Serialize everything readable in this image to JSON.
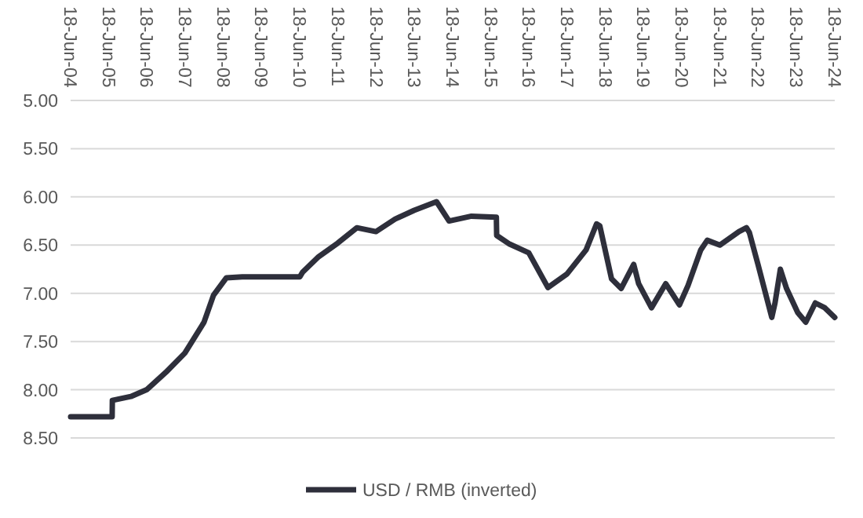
{
  "chart_data": {
    "type": "line",
    "x": [
      "2004-06-18",
      "2005-07-20",
      "2005-07-22",
      "2006-01-15",
      "2006-06-15",
      "2006-12-15",
      "2007-06-15",
      "2007-12-15",
      "2008-03-15",
      "2008-07-15",
      "2008-12-15",
      "2009-06-15",
      "2010-06-18",
      "2010-07-15",
      "2010-12-15",
      "2011-06-15",
      "2011-12-15",
      "2012-06-15",
      "2012-12-15",
      "2013-06-15",
      "2014-01-15",
      "2014-05-15",
      "2014-12-15",
      "2015-08-10",
      "2015-08-13",
      "2015-12-15",
      "2016-06-15",
      "2016-12-15",
      "2017-06-15",
      "2017-12-15",
      "2018-03-25",
      "2018-04-25",
      "2018-08-15",
      "2018-11-15",
      "2019-03-15",
      "2019-05-01",
      "2019-09-01",
      "2020-01-15",
      "2020-05-25",
      "2020-08-15",
      "2020-12-15",
      "2021-02-15",
      "2021-06-15",
      "2021-12-15",
      "2022-02-25",
      "2022-03-25",
      "2022-06-15",
      "2022-10-25",
      "2022-11-25",
      "2023-01-15",
      "2023-03-15",
      "2023-06-30",
      "2023-09-15",
      "2023-12-15",
      "2024-03-15",
      "2024-06-18"
    ],
    "series": [
      {
        "name": "USD / RMB (inverted)",
        "color": "#2e2f3b",
        "values": [
          8.28,
          8.28,
          8.11,
          8.07,
          8.0,
          7.82,
          7.62,
          7.3,
          7.02,
          6.84,
          6.83,
          6.83,
          6.83,
          6.78,
          6.62,
          6.48,
          6.32,
          6.36,
          6.23,
          6.14,
          6.05,
          6.25,
          6.2,
          6.21,
          6.4,
          6.49,
          6.58,
          6.94,
          6.8,
          6.55,
          6.28,
          6.3,
          6.85,
          6.95,
          6.7,
          6.9,
          7.15,
          6.9,
          7.12,
          6.92,
          6.55,
          6.45,
          6.5,
          6.36,
          6.32,
          6.37,
          6.7,
          7.25,
          7.1,
          6.75,
          6.95,
          7.2,
          7.3,
          7.1,
          7.15,
          7.25
        ]
      }
    ],
    "xlim": [
      "2004-06-18",
      "2024-06-18"
    ],
    "xticks": [
      {
        "value": "2004-06-18",
        "label": "18-Jun-04"
      },
      {
        "value": "2005-06-18",
        "label": "18-Jun-05"
      },
      {
        "value": "2006-06-18",
        "label": "18-Jun-06"
      },
      {
        "value": "2007-06-18",
        "label": "18-Jun-07"
      },
      {
        "value": "2008-06-18",
        "label": "18-Jun-08"
      },
      {
        "value": "2009-06-18",
        "label": "18-Jun-09"
      },
      {
        "value": "2010-06-18",
        "label": "18-Jun-10"
      },
      {
        "value": "2011-06-18",
        "label": "18-Jun-11"
      },
      {
        "value": "2012-06-18",
        "label": "18-Jun-12"
      },
      {
        "value": "2013-06-18",
        "label": "18-Jun-13"
      },
      {
        "value": "2014-06-18",
        "label": "18-Jun-14"
      },
      {
        "value": "2015-06-18",
        "label": "18-Jun-15"
      },
      {
        "value": "2016-06-18",
        "label": "18-Jun-16"
      },
      {
        "value": "2017-06-18",
        "label": "18-Jun-17"
      },
      {
        "value": "2018-06-18",
        "label": "18-Jun-18"
      },
      {
        "value": "2019-06-18",
        "label": "18-Jun-19"
      },
      {
        "value": "2020-06-18",
        "label": "18-Jun-20"
      },
      {
        "value": "2021-06-18",
        "label": "18-Jun-21"
      },
      {
        "value": "2022-06-18",
        "label": "18-Jun-22"
      },
      {
        "value": "2023-06-18",
        "label": "18-Jun-23"
      },
      {
        "value": "2024-06-18",
        "label": "18-Jun-24"
      }
    ],
    "ylim": [
      8.5,
      5.0
    ],
    "yticks": [
      {
        "value": 5.0,
        "label": "5.00"
      },
      {
        "value": 5.5,
        "label": "5.50"
      },
      {
        "value": 6.0,
        "label": "6.00"
      },
      {
        "value": 6.5,
        "label": "6.50"
      },
      {
        "value": 7.0,
        "label": "7.00"
      },
      {
        "value": 7.5,
        "label": "7.50"
      },
      {
        "value": 8.0,
        "label": "8.00"
      },
      {
        "value": 8.5,
        "label": "8.50"
      }
    ],
    "grid": "y",
    "legend": "bottom",
    "marker": "none",
    "line_style": "solid"
  }
}
